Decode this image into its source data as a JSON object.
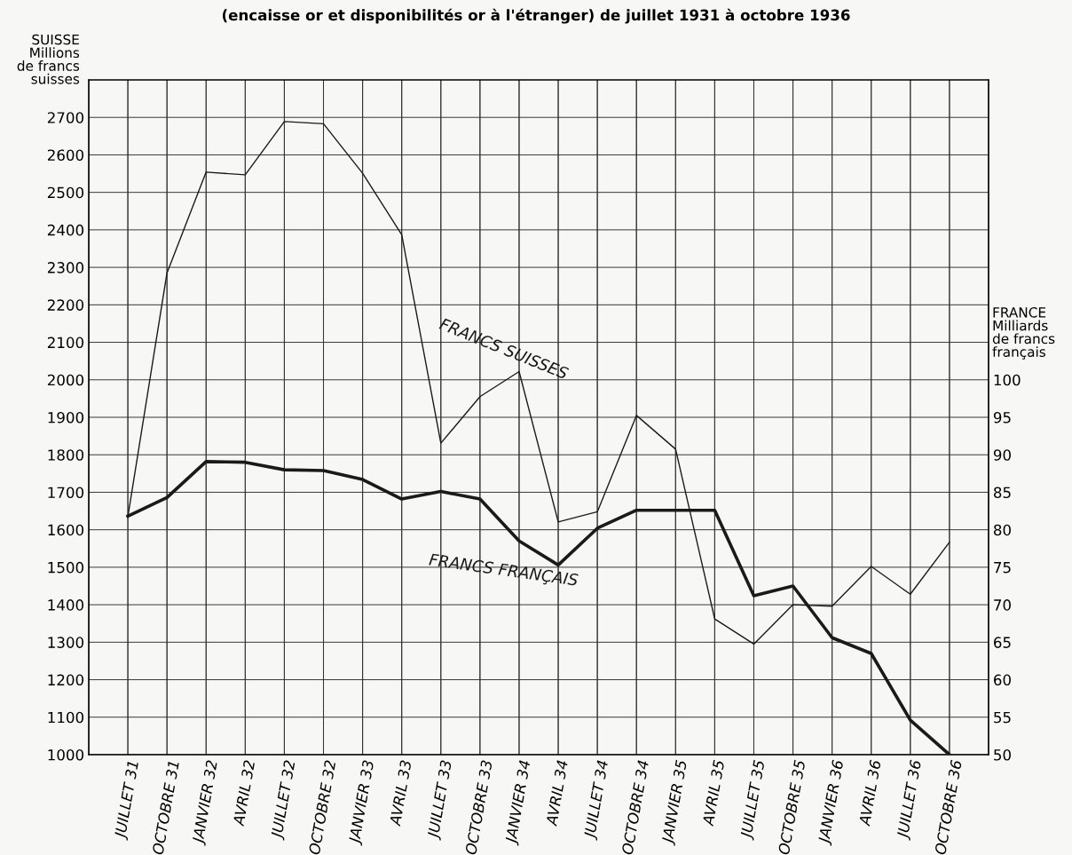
{
  "chart_data": {
    "type": "line",
    "title": "(encaisse or et disponibilités or à l'étranger) de juillet 1931 à octobre 1936",
    "ylabel": "SUISSE\nMillions\nde francs\nsuisses",
    "y2label": "FRANCE\nMilliards\nde francs\nfrançais",
    "categories": [
      "JUILLET 31",
      "OCTOBRE 31",
      "JANVIER 32",
      "AVRIL 32",
      "JUILLET 32",
      "OCTOBRE 32",
      "JANVIER 33",
      "AVRIL 33",
      "JUILLET 33",
      "OCTOBRE 33",
      "JANVIER 34",
      "AVRIL 34",
      "JUILLET 34",
      "OCTOBRE 34",
      "JANVIER 35",
      "AVRIL 35",
      "JUILLET 35",
      "OCTOBRE 35",
      "JANVIER 36",
      "AVRIL 36",
      "JUILLET 36",
      "OCTOBRE 36"
    ],
    "series": [
      {
        "name": "FRANCS SUISSES",
        "color": "#1a1a1a",
        "values": [
          1635,
          2285,
          2554,
          2547,
          2689,
          2683,
          2551,
          2387,
          1831,
          1955,
          2022,
          1621,
          1648,
          1905,
          1815,
          1362,
          1295,
          1400,
          1396,
          1502,
          1428,
          1567
        ]
      },
      {
        "name": "FRANCS FRANÇAIS",
        "color": "#1a1a1a",
        "axis": "y2",
        "values": [
          81.8,
          84.3,
          89.1,
          89.0,
          88.0,
          87.9,
          86.7,
          84.1,
          85.1,
          84.1,
          78.5,
          75.3,
          80.2,
          82.6,
          82.6,
          82.6,
          71.2,
          72.5,
          65.6,
          63.5,
          54.6,
          50
        ]
      }
    ],
    "ylim": [
      1000,
      2800
    ],
    "yticks": [
      1000,
      1100,
      1200,
      1300,
      1400,
      1500,
      1600,
      1700,
      1800,
      1900,
      2000,
      2100,
      2200,
      2300,
      2400,
      2500,
      2600,
      2700
    ],
    "y2lim": [
      50,
      140
    ],
    "y2ticks": [
      50,
      55,
      60,
      65,
      70,
      75,
      80,
      85,
      90,
      95,
      100
    ],
    "grid": true,
    "marker": "none",
    "line_style": "solid"
  }
}
